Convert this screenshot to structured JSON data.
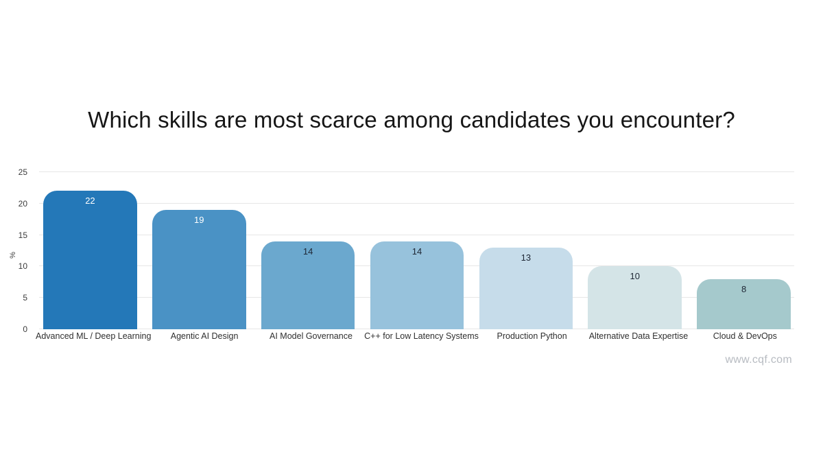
{
  "title": "Which skills are most scarce among candidates you encounter?",
  "watermark": "www.cqf.com",
  "background_color": "#ffffff",
  "chart_data": {
    "type": "bar",
    "title": "Which skills are most scarce among candidates you encounter?",
    "categories": [
      "Advanced ML / Deep Learning",
      "Agentic AI Design",
      "AI Model Governance",
      "C++ for Low Latency Systems",
      "Production Python",
      "Alternative Data Expertise",
      "Cloud & DevOps"
    ],
    "values": [
      22,
      19,
      14,
      14,
      13,
      10,
      8
    ],
    "bar_colors": [
      "#2478b8",
      "#4a92c5",
      "#6ba8ce",
      "#97c2dc",
      "#c6dcea",
      "#d4e4e7",
      "#a5c9cc"
    ],
    "value_label_colors": [
      "#ffffff",
      "#ffffff",
      "#1d2533",
      "#1d2533",
      "#1d2533",
      "#1d2533",
      "#1d2533"
    ],
    "xlabel": "",
    "ylabel": "%",
    "ylim": [
      0,
      25
    ],
    "yticks": [
      0,
      5,
      10,
      15,
      20,
      25
    ],
    "grid": true,
    "legend_position": "none"
  }
}
